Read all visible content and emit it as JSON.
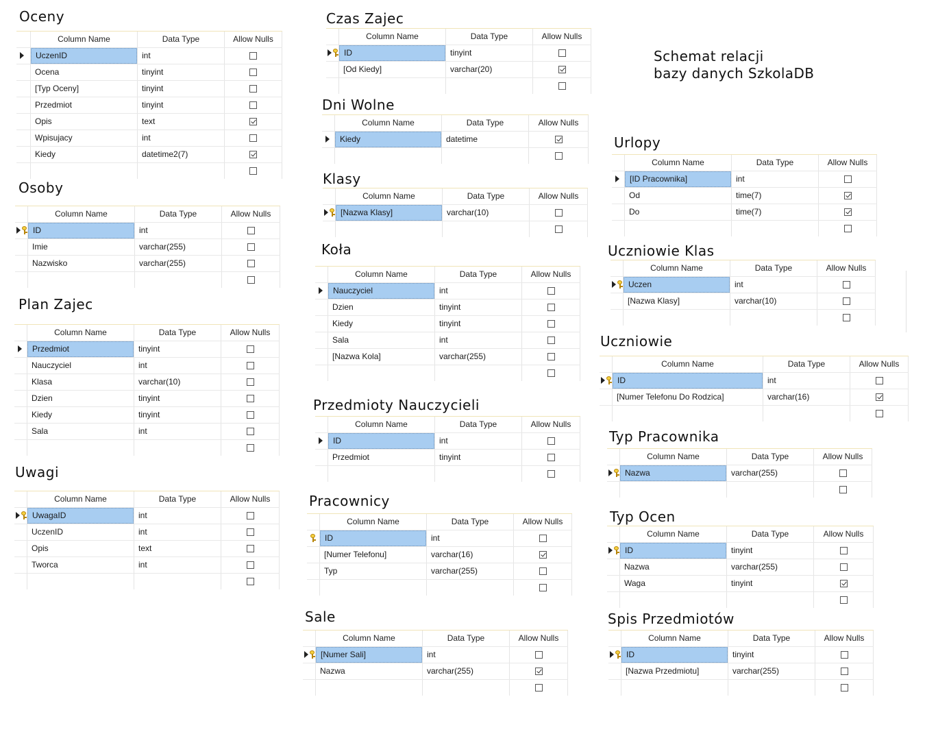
{
  "diagram_title": {
    "line1": "Schemat relacji",
    "line2": "bazy danych SzkolaDB"
  },
  "headers": {
    "column_name": "Column Name",
    "data_type": "Data Type",
    "allow_nulls": "Allow Nulls"
  },
  "tables": [
    {
      "id": "oceny",
      "title": "Oceny",
      "rows": [
        {
          "name": "UczenID",
          "type": "int",
          "nulls": false,
          "marker": "arrow",
          "selected": true
        },
        {
          "name": "Ocena",
          "type": "tinyint",
          "nulls": false
        },
        {
          "name": "[Typ Oceny]",
          "type": "tinyint",
          "nulls": false
        },
        {
          "name": "Przedmiot",
          "type": "tinyint",
          "nulls": false
        },
        {
          "name": "Opis",
          "type": "text",
          "nulls": true
        },
        {
          "name": "Wpisujacy",
          "type": "int",
          "nulls": false
        },
        {
          "name": "Kiedy",
          "type": "datetime2(7)",
          "nulls": true
        },
        {
          "name": "",
          "type": "",
          "nulls": false
        }
      ]
    },
    {
      "id": "osoby",
      "title": "Osoby",
      "rows": [
        {
          "name": "ID",
          "type": "int",
          "nulls": false,
          "marker": "arrow-key",
          "selected": true
        },
        {
          "name": "Imie",
          "type": "varchar(255)",
          "nulls": false
        },
        {
          "name": "Nazwisko",
          "type": "varchar(255)",
          "nulls": false
        },
        {
          "name": "",
          "type": "",
          "nulls": false
        }
      ]
    },
    {
      "id": "plan-zajec",
      "title": "Plan Zajec",
      "rows": [
        {
          "name": "Przedmiot",
          "type": "tinyint",
          "nulls": false,
          "marker": "arrow",
          "selected": true
        },
        {
          "name": "Nauczyciel",
          "type": "int",
          "nulls": false
        },
        {
          "name": "Klasa",
          "type": "varchar(10)",
          "nulls": false
        },
        {
          "name": "Dzien",
          "type": "tinyint",
          "nulls": false
        },
        {
          "name": "Kiedy",
          "type": "tinyint",
          "nulls": false
        },
        {
          "name": "Sala",
          "type": "int",
          "nulls": false
        },
        {
          "name": "",
          "type": "",
          "nulls": false
        }
      ]
    },
    {
      "id": "uwagi",
      "title": "Uwagi",
      "rows": [
        {
          "name": "UwagaID",
          "type": "int",
          "nulls": false,
          "marker": "arrow-key",
          "selected": true
        },
        {
          "name": "UczenID",
          "type": "int",
          "nulls": false
        },
        {
          "name": "Opis",
          "type": "text",
          "nulls": false
        },
        {
          "name": "Tworca",
          "type": "int",
          "nulls": false
        },
        {
          "name": "",
          "type": "",
          "nulls": false
        }
      ]
    },
    {
      "id": "czas-zajec",
      "title": "Czas Zajec",
      "rows": [
        {
          "name": "ID",
          "type": "tinyint",
          "nulls": false,
          "marker": "arrow-key",
          "selected": true
        },
        {
          "name": "[Od Kiedy]",
          "type": "varchar(20)",
          "nulls": true
        },
        {
          "name": "",
          "type": "",
          "nulls": false
        }
      ]
    },
    {
      "id": "dni-wolne",
      "title": "Dni Wolne",
      "rows": [
        {
          "name": "Kiedy",
          "type": "datetime",
          "nulls": true,
          "marker": "arrow",
          "selected": true
        },
        {
          "name": "",
          "type": "",
          "nulls": false
        }
      ]
    },
    {
      "id": "klasy",
      "title": "Klasy",
      "rows": [
        {
          "name": "[Nazwa Klasy]",
          "type": "varchar(10)",
          "nulls": false,
          "marker": "arrow-key",
          "selected": true
        },
        {
          "name": "",
          "type": "",
          "nulls": false
        }
      ]
    },
    {
      "id": "kola",
      "title": "Koła",
      "rows": [
        {
          "name": "Nauczyciel",
          "type": "int",
          "nulls": false,
          "marker": "arrow",
          "selected": true
        },
        {
          "name": "Dzien",
          "type": "tinyint",
          "nulls": false
        },
        {
          "name": "Kiedy",
          "type": "tinyint",
          "nulls": false
        },
        {
          "name": "Sala",
          "type": "int",
          "nulls": false
        },
        {
          "name": "[Nazwa Kola]",
          "type": "varchar(255)",
          "nulls": false
        },
        {
          "name": "",
          "type": "",
          "nulls": false
        }
      ]
    },
    {
      "id": "przedmioty-nauczycieli",
      "title": "Przedmioty Nauczycieli",
      "rows": [
        {
          "name": "ID",
          "type": "int",
          "nulls": false,
          "marker": "arrow",
          "selected": true
        },
        {
          "name": "Przedmiot",
          "type": "tinyint",
          "nulls": false
        },
        {
          "name": "",
          "type": "",
          "nulls": false
        }
      ]
    },
    {
      "id": "pracownicy",
      "title": "Pracownicy",
      "rows": [
        {
          "name": "ID",
          "type": "int",
          "nulls": false,
          "marker": "key",
          "selected": true
        },
        {
          "name": "[Numer Telefonu]",
          "type": "varchar(16)",
          "nulls": true
        },
        {
          "name": "Typ",
          "type": "varchar(255)",
          "nulls": false
        },
        {
          "name": "",
          "type": "",
          "nulls": false
        }
      ]
    },
    {
      "id": "sale",
      "title": "Sale",
      "rows": [
        {
          "name": "[Numer Sali]",
          "type": "int",
          "nulls": false,
          "marker": "arrow-key",
          "selected": true
        },
        {
          "name": "Nazwa",
          "type": "varchar(255)",
          "nulls": true
        },
        {
          "name": "",
          "type": "",
          "nulls": false
        }
      ]
    },
    {
      "id": "urlopy",
      "title": "Urlopy",
      "rows": [
        {
          "name": "[ID Pracownika]",
          "type": "int",
          "nulls": false,
          "marker": "arrow",
          "selected": true
        },
        {
          "name": "Od",
          "type": "time(7)",
          "nulls": true
        },
        {
          "name": "Do",
          "type": "time(7)",
          "nulls": true
        },
        {
          "name": "",
          "type": "",
          "nulls": false
        }
      ]
    },
    {
      "id": "uczniowie-klas",
      "title": "Uczniowie Klas",
      "rows": [
        {
          "name": "Uczen",
          "type": "int",
          "nulls": false,
          "marker": "arrow-key",
          "selected": true
        },
        {
          "name": "[Nazwa Klasy]",
          "type": "varchar(10)",
          "nulls": false
        },
        {
          "name": "",
          "type": "",
          "nulls": false
        }
      ]
    },
    {
      "id": "uczniowie",
      "title": "Uczniowie",
      "rows": [
        {
          "name": "ID",
          "type": "int",
          "nulls": false,
          "marker": "arrow-key",
          "selected": true
        },
        {
          "name": "[Numer Telefonu Do Rodzica]",
          "type": "varchar(16)",
          "nulls": true
        },
        {
          "name": "",
          "type": "",
          "nulls": false
        }
      ]
    },
    {
      "id": "typ-pracownika",
      "title": "Typ Pracownika",
      "rows": [
        {
          "name": "Nazwa",
          "type": "varchar(255)",
          "nulls": false,
          "marker": "arrow-key",
          "selected": true
        },
        {
          "name": "",
          "type": "",
          "nulls": false
        }
      ]
    },
    {
      "id": "typ-ocen",
      "title": "Typ Ocen",
      "rows": [
        {
          "name": "ID",
          "type": "tinyint",
          "nulls": false,
          "marker": "arrow-key",
          "selected": true
        },
        {
          "name": "Nazwa",
          "type": "varchar(255)",
          "nulls": false
        },
        {
          "name": "Waga",
          "type": "tinyint",
          "nulls": true
        },
        {
          "name": "",
          "type": "",
          "nulls": false
        }
      ]
    },
    {
      "id": "spis-przedmiotow",
      "title": "Spis Przedmiotów",
      "rows": [
        {
          "name": "ID",
          "type": "tinyint",
          "nulls": false,
          "marker": "arrow-key",
          "selected": true
        },
        {
          "name": "[Nazwa Przedmiotu]",
          "type": "varchar(255)",
          "nulls": false
        },
        {
          "name": "",
          "type": "",
          "nulls": false
        }
      ]
    }
  ]
}
